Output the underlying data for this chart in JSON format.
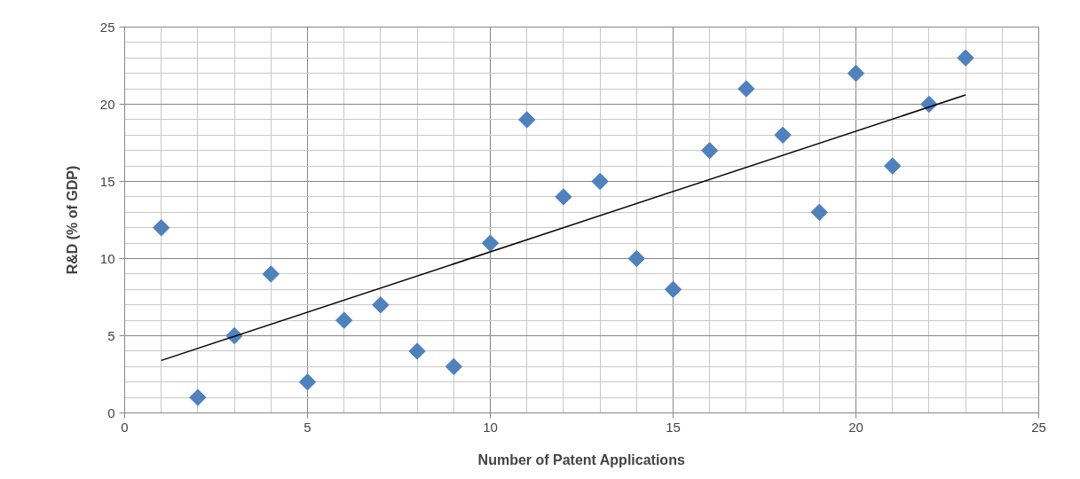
{
  "chart_data": {
    "type": "scatter",
    "xlabel": "Number of Patent Applications",
    "ylabel": "R&D (% of GDP)",
    "xlim": [
      0,
      25
    ],
    "ylim": [
      0,
      25
    ],
    "xticks": [
      0,
      5,
      10,
      15,
      20,
      25
    ],
    "yticks": [
      0,
      5,
      10,
      15,
      20,
      25
    ],
    "grid": true,
    "series": [
      {
        "color": "#4f81bd",
        "marker": "diamond",
        "x": [
          1,
          2,
          3,
          4,
          5,
          6,
          7,
          8,
          9,
          10,
          11,
          12,
          13,
          14,
          15,
          16,
          17,
          18,
          19,
          20,
          21,
          22,
          23
        ],
        "values": [
          12,
          1,
          5,
          9,
          2,
          6,
          7,
          4,
          3,
          11,
          19,
          14,
          15,
          10,
          8,
          17,
          21,
          18,
          13,
          22,
          16,
          20,
          23
        ]
      },
      {
        "type": "line",
        "marker": "none",
        "color": "#000000",
        "x": [
          1,
          23
        ],
        "values": [
          3.4,
          20.6
        ]
      }
    ]
  }
}
